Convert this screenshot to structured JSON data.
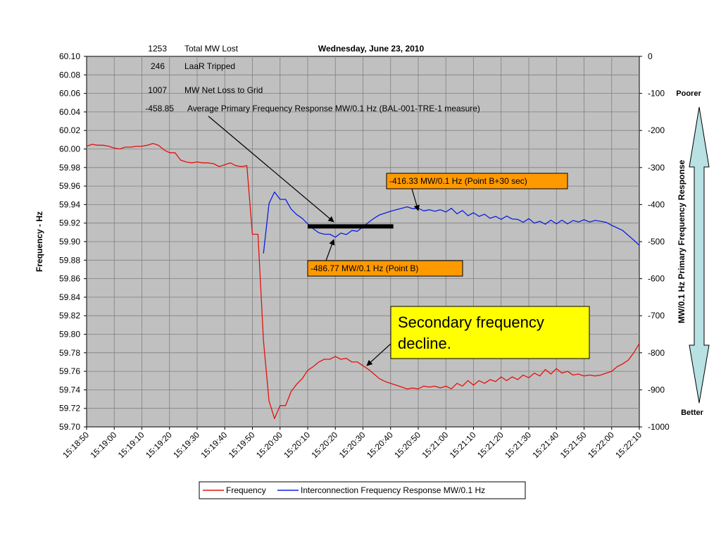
{
  "chart_data": {
    "type": "line",
    "title": "Wednesday, June 23, 2010",
    "xlabel": "",
    "ylabel": "Frequency - Hz",
    "y2label": "MW/0.1 Hz Primary Frequency Response",
    "grid": true,
    "legend_position": "bottom",
    "x_tick_labels": [
      "15:18:50",
      "15:19:00",
      "15:19:10",
      "15:19:20",
      "15:19:30",
      "15:19:40",
      "15:19:50",
      "15:20:00",
      "15:20:10",
      "15:20:20",
      "15:20:30",
      "15:20:40",
      "15:20:50",
      "15:21:00",
      "15:21:10",
      "15:21:20",
      "15:21:30",
      "15:21:40",
      "15:21:50",
      "15:22:00",
      "15:22:10"
    ],
    "x_range_seconds": [
      0,
      200
    ],
    "ylim": [
      59.7,
      60.1
    ],
    "y_tick_labels": [
      "60.10",
      "60.08",
      "60.06",
      "60.04",
      "60.02",
      "60.00",
      "59.98",
      "59.96",
      "59.94",
      "59.92",
      "59.90",
      "59.88",
      "59.86",
      "59.84",
      "59.82",
      "59.80",
      "59.78",
      "59.76",
      "59.74",
      "59.72",
      "59.70"
    ],
    "y2lim": [
      -1000,
      0
    ],
    "y2_tick_labels": [
      "0",
      "-100",
      "-200",
      "-300",
      "-400",
      "-500",
      "-600",
      "-700",
      "-800",
      "-900",
      "-1000"
    ],
    "series": [
      {
        "name": "Frequency",
        "color": "#e3120b",
        "axis": "left",
        "x": [
          0,
          2,
          4,
          6,
          8,
          10,
          12,
          14,
          16,
          18,
          20,
          22,
          24,
          26,
          28,
          30,
          32,
          34,
          36,
          38,
          40,
          42,
          44,
          46,
          48,
          50,
          52,
          54,
          56,
          58,
          60,
          62,
          64,
          66,
          68,
          70,
          72,
          74,
          76,
          78,
          80,
          82,
          84,
          86,
          88,
          90,
          92,
          94,
          96,
          98,
          100,
          102,
          104,
          106,
          108,
          110,
          112,
          114,
          116,
          118,
          120,
          122,
          124,
          126,
          128,
          130,
          132,
          134,
          136,
          138,
          140,
          142,
          144,
          146,
          148,
          150,
          152,
          154,
          156,
          158,
          160,
          162,
          164,
          166,
          168,
          170,
          172,
          174,
          176,
          178,
          180,
          182,
          184,
          186,
          188,
          190,
          192,
          194,
          196,
          198,
          200
        ],
        "y": [
          60.003,
          60.005,
          60.004,
          60.004,
          60.003,
          60.001,
          60.0,
          60.002,
          60.002,
          60.003,
          60.003,
          60.004,
          60.006,
          60.004,
          59.999,
          59.996,
          59.996,
          59.988,
          59.986,
          59.985,
          59.986,
          59.985,
          59.985,
          59.984,
          59.981,
          59.983,
          59.985,
          59.982,
          59.981,
          59.982,
          59.908,
          59.908,
          59.793,
          59.728,
          59.709,
          59.723,
          59.723,
          59.738,
          59.746,
          59.752,
          59.761,
          59.765,
          59.77,
          59.773,
          59.773,
          59.776,
          59.773,
          59.774,
          59.77,
          59.77,
          59.766,
          59.762,
          59.757,
          59.752,
          59.749,
          59.747,
          59.745,
          59.743,
          59.741,
          59.742,
          59.741,
          59.744,
          59.743,
          59.744,
          59.742,
          59.744,
          59.741,
          59.747,
          59.744,
          59.75,
          59.745,
          59.75,
          59.747,
          59.751,
          59.749,
          59.754,
          59.75,
          59.754,
          59.751,
          59.756,
          59.753,
          59.758,
          59.755,
          59.762,
          59.757,
          59.763,
          59.758,
          59.76,
          59.756,
          59.757,
          59.755,
          59.756,
          59.755,
          59.756,
          59.758,
          59.76,
          59.765,
          59.768,
          59.772,
          59.78,
          59.79
        ]
      },
      {
        "name": "Interconnection Frequency  Response MW/0.1 Hz",
        "color": "#0b1ee3",
        "axis": "right",
        "x": [
          64,
          66,
          68,
          70,
          72,
          74,
          76,
          78,
          80,
          82,
          84,
          86,
          88,
          90,
          92,
          94,
          96,
          98,
          100,
          102,
          104,
          106,
          108,
          110,
          112,
          114,
          116,
          118,
          120,
          122,
          124,
          126,
          128,
          130,
          132,
          134,
          136,
          138,
          140,
          142,
          144,
          146,
          148,
          150,
          152,
          154,
          156,
          158,
          160,
          162,
          164,
          166,
          168,
          170,
          172,
          174,
          176,
          178,
          180,
          182,
          184,
          186,
          188,
          190,
          192,
          194,
          196,
          198,
          200
        ],
        "y": [
          -532,
          -397,
          -366,
          -386,
          -386,
          -412,
          -427,
          -437,
          -452,
          -465,
          -476,
          -480,
          -480,
          -488,
          -477,
          -481,
          -470,
          -472,
          -460,
          -448,
          -437,
          -428,
          -423,
          -418,
          -414,
          -410,
          -406,
          -411,
          -410,
          -417,
          -414,
          -418,
          -414,
          -420,
          -410,
          -425,
          -416,
          -430,
          -422,
          -432,
          -426,
          -437,
          -432,
          -440,
          -431,
          -439,
          -440,
          -448,
          -438,
          -450,
          -445,
          -453,
          -442,
          -452,
          -442,
          -452,
          -443,
          -447,
          -441,
          -447,
          -443,
          -445,
          -448,
          -456,
          -463,
          -470,
          -483,
          -496,
          -510
        ]
      }
    ],
    "annotations": {
      "stats": [
        {
          "value": "1253",
          "label": "Total MW Lost"
        },
        {
          "value": "246",
          "label": "LaaR Tripped"
        },
        {
          "value": "1007",
          "label": "MW Net Loss to Grid"
        },
        {
          "value": "-458.85",
          "label": "Average Primary Frequency Response MW/0.1 Hz (BAL-001-TRE-1 measure)"
        }
      ],
      "average_line": {
        "x_start": 80,
        "x_end": 111,
        "value": -458.85
      },
      "point_b30_label": "-416.33 MW/0.1 Hz (Point B+30 sec)",
      "point_b_label": "-486.77 MW/0.1 Hz (Point B)",
      "secondary_label_line1": "Secondary frequency",
      "secondary_label_line2": "decline.",
      "poorer_label": "Poorer",
      "better_label": "Better"
    },
    "colors": {
      "plot_background": "#c0c0c0",
      "orange_box": "#ff9900",
      "yellow_box": "#ffff00",
      "arrow_fill": "#b7e1e3"
    }
  }
}
